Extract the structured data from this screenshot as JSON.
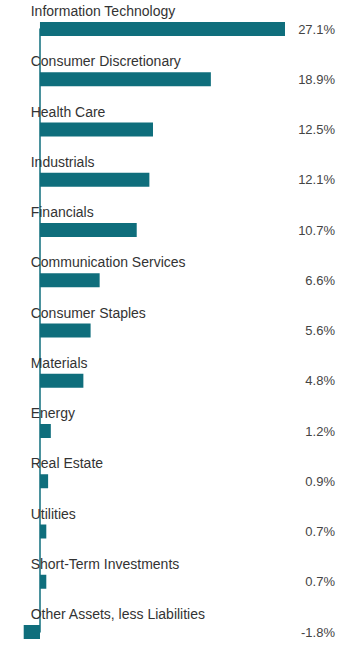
{
  "chart_data": {
    "type": "bar",
    "orientation": "horizontal",
    "categories": [
      "Information Technology",
      "Consumer Discretionary",
      "Health Care",
      "Industrials",
      "Financials",
      "Communication Services",
      "Consumer Staples",
      "Materials",
      "Energy",
      "Real Estate",
      "Utilities",
      "Short-Term Investments",
      "Other Assets, less Liabilities"
    ],
    "values": [
      27.1,
      18.9,
      12.5,
      12.1,
      10.7,
      6.6,
      5.6,
      4.8,
      1.2,
      0.9,
      0.7,
      0.7,
      -1.8
    ],
    "value_labels": [
      "27.1%",
      "18.9%",
      "12.5%",
      "12.1%",
      "10.7%",
      "6.6%",
      "5.6%",
      "4.8%",
      "1.2%",
      "0.9%",
      "0.7%",
      "0.7%",
      "-1.8%"
    ],
    "color": "#0f6e7c",
    "xlim": [
      -1.8,
      27.1
    ],
    "grid": false,
    "tick_labels": "y",
    "data_labels": true
  }
}
